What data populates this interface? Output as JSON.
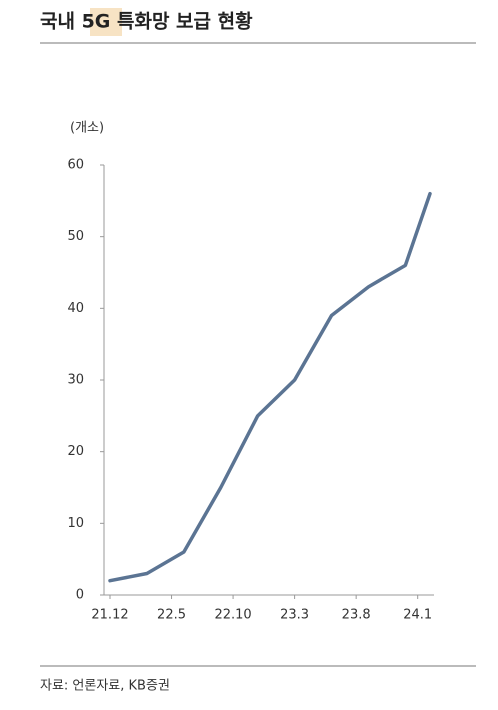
{
  "chart_data": {
    "type": "line",
    "title": "국내 5G 특화망 보급 현황",
    "y_label": "(개소)",
    "x": [
      0,
      3,
      6,
      9,
      12,
      15,
      18,
      21,
      24,
      26
    ],
    "series": [
      {
        "color": "#5b7493",
        "values": [
          2,
          3,
          6,
          15,
          25,
          30,
          39,
          43,
          46,
          56
        ]
      }
    ],
    "xlim": [
      0,
      26
    ],
    "xticks": [
      {
        "value": 0,
        "label": "21.12"
      },
      {
        "value": 5,
        "label": "22.5"
      },
      {
        "value": 10,
        "label": "22.10"
      },
      {
        "value": 15,
        "label": "23.3"
      },
      {
        "value": 20,
        "label": "23.8"
      },
      {
        "value": 25,
        "label": "24.1"
      }
    ],
    "ylim": [
      0,
      60
    ],
    "yticks": [
      0,
      10,
      20,
      30,
      40,
      50,
      60
    ],
    "source": "자료: 언론자료, KB증권"
  }
}
